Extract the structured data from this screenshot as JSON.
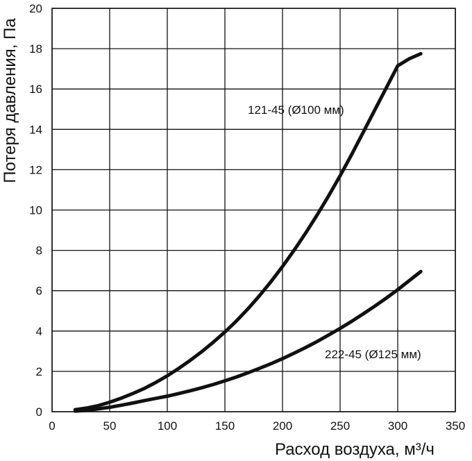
{
  "chart_data": {
    "type": "line",
    "title": "",
    "xlabel": "Расход воздуха, м³/ч",
    "ylabel": "Потеря давления, Па",
    "xlim": [
      0,
      350
    ],
    "ylim": [
      0,
      20
    ],
    "x_ticks": [
      0,
      50,
      100,
      150,
      200,
      250,
      300,
      350
    ],
    "y_ticks": [
      0,
      2,
      4,
      6,
      8,
      10,
      12,
      14,
      16,
      18,
      20
    ],
    "grid": true,
    "legend": "none",
    "series": [
      {
        "name": "121-45 (Ø100 мм)",
        "x": [
          20,
          30,
          40,
          50,
          60,
          70,
          80,
          90,
          100,
          110,
          120,
          130,
          140,
          150,
          160,
          170,
          180,
          190,
          200,
          210,
          220,
          230,
          240,
          250,
          260,
          270,
          280,
          290,
          300,
          310,
          320
        ],
        "y": [
          0.1,
          0.18,
          0.3,
          0.47,
          0.67,
          0.9,
          1.15,
          1.45,
          1.78,
          2.15,
          2.55,
          2.98,
          3.45,
          3.95,
          4.5,
          5.1,
          5.75,
          6.45,
          7.2,
          8.0,
          8.85,
          9.75,
          10.7,
          11.7,
          12.75,
          13.85,
          14.95,
          16.05,
          17.15,
          17.5,
          17.75
        ],
        "label_text": "121-45 (Ø100 мм)"
      },
      {
        "name": "222-45 (Ø125 мм)",
        "x": [
          20,
          30,
          40,
          50,
          60,
          70,
          80,
          90,
          100,
          110,
          120,
          130,
          140,
          150,
          160,
          170,
          180,
          190,
          200,
          210,
          220,
          230,
          240,
          250,
          260,
          270,
          280,
          290,
          300,
          310,
          320
        ],
        "y": [
          0.03,
          0.07,
          0.14,
          0.22,
          0.32,
          0.43,
          0.55,
          0.66,
          0.77,
          0.9,
          1.04,
          1.19,
          1.35,
          1.53,
          1.72,
          1.93,
          2.15,
          2.38,
          2.63,
          2.9,
          3.18,
          3.48,
          3.8,
          4.13,
          4.48,
          4.85,
          5.23,
          5.63,
          6.05,
          6.5,
          6.95
        ],
        "label_text": "222-45 (Ø125 мм)"
      }
    ]
  }
}
